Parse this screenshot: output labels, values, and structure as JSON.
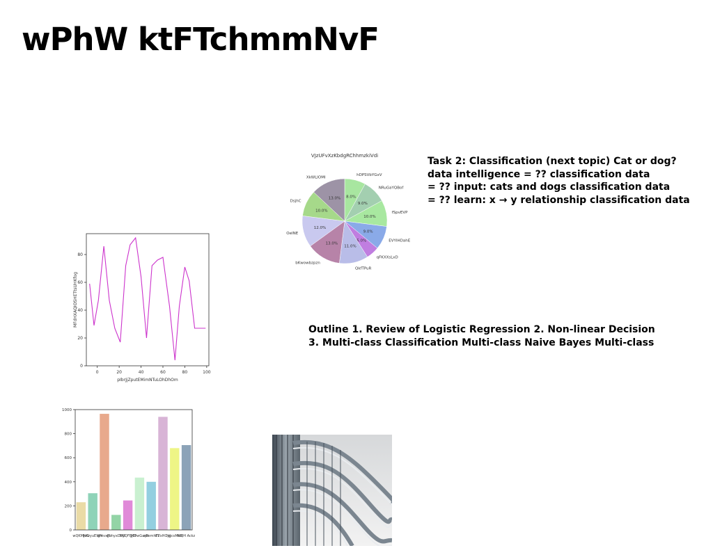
{
  "slide": {
    "title": "wPhW ktFTchmmNvF",
    "task_lines": [
      "Task 2: Classification (next topic) Cat or dog?",
      "data intelligence = ?? classification data",
      "= ?? input: cats and dogs classification data",
      "= ?? learn: x → y relationship classification data"
    ],
    "outline_lines": [
      "Outline 1. Review of Logistic Regression 2. Non-linear Decision",
      "3. Multi-class Classification Multi-class Naive Bayes Multi-class"
    ]
  },
  "chart_data": [
    {
      "type": "line",
      "title": "",
      "xlabel": "pIbrJjZputEMimNTuLOhDhOm",
      "ylabel": "MFdHXAQIOSHETtsUHKfog",
      "x": [
        -7,
        -3,
        1,
        6,
        11,
        16,
        21,
        26,
        30,
        35,
        40,
        45,
        50,
        55,
        60,
        66,
        71,
        75,
        80,
        84,
        89,
        94,
        99
      ],
      "series": [
        {
          "values": [
            59,
            29,
            47,
            86,
            47,
            27,
            17,
            72,
            87,
            92,
            64,
            20,
            72,
            76,
            78,
            43,
            4,
            43,
            71,
            61,
            27,
            27,
            27
          ]
        }
      ],
      "xlim": [
        -10,
        102
      ],
      "ylim": [
        0,
        95
      ],
      "xticks": [
        0,
        20,
        40,
        60,
        80,
        100
      ],
      "yticks": [
        0,
        20,
        40,
        60,
        80
      ],
      "color": "#cc33cc"
    },
    {
      "type": "pie",
      "title": "VJzUFvXzKbdgRChhmzkiVdi",
      "labels": [
        "hDPSVbYGxV",
        "NRuGaYQBof",
        "fSpvEVP",
        "EVYIHDahE",
        "qFKXXsLxD",
        "QkfTPuR",
        "bKwowbzpzn",
        "OeINE",
        "DsjhC",
        "XkWLIOMI"
      ],
      "values": [
        8.0,
        9.0,
        10.0,
        9.0,
        5.0,
        11.0,
        13.0,
        12.0,
        10.0,
        13.0
      ],
      "percent_labels": [
        "8.0%",
        "9.0%",
        "10.0%",
        "9.0%",
        "5.0%",
        "11.0%",
        "13.0%",
        "12.0%",
        "10.0%",
        "13.0%"
      ],
      "colors": [
        "#a8e6a0",
        "#a3cfb0",
        "#a8e8a0",
        "#8aaae8",
        "#c07ee0",
        "#b9bde8",
        "#b783a8",
        "#c9c9ef",
        "#a6d98a",
        "#9d93a6"
      ]
    },
    {
      "type": "bar",
      "title": "",
      "categories": [
        "wQKMJoG",
        "hKvyuEWN",
        "gmvxFo",
        "gbhyxDUD",
        "MyQFBJEf",
        "JKDwGaxb",
        "zjPemhtT",
        "EVxHOyJ",
        "ltgcoMuX",
        "MQH Ackz"
      ],
      "values": [
        230,
        305,
        965,
        125,
        245,
        435,
        400,
        940,
        680,
        705
      ],
      "colors": [
        "#eadba6",
        "#8fd3b8",
        "#e8a98c",
        "#93d4a6",
        "#e08ad8",
        "#c9f0d0",
        "#93cfe0",
        "#d8b4d6",
        "#eef586",
        "#8ca3b8"
      ],
      "ylim": [
        0,
        1000
      ],
      "yticks": [
        0,
        200,
        400,
        600,
        800,
        1000
      ]
    }
  ],
  "image": {
    "subject": "curved glass office building facade"
  }
}
